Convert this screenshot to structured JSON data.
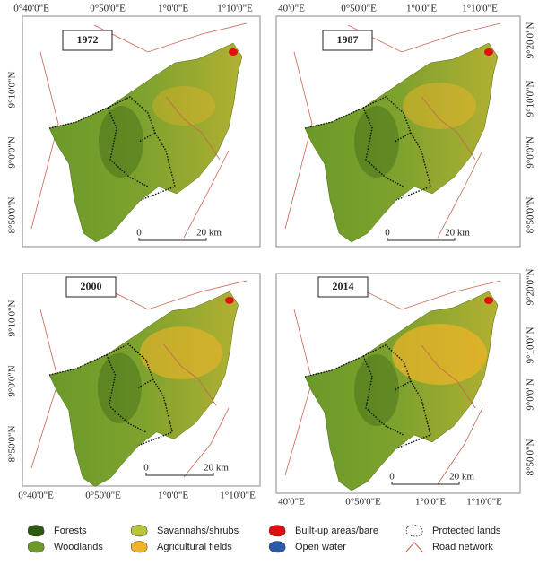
{
  "panels": [
    {
      "year": "1972",
      "lon_labels": [
        "0°40'0\"E",
        "0°50'0\"E",
        "1°0'0\"E",
        "1°10'0\"E"
      ],
      "lat_labels": [
        "9°10'0\"N",
        "9°0'0\"N",
        "8°50'0\"N"
      ],
      "scale_zero": "0",
      "scale_distance": "20 km"
    },
    {
      "year": "1987",
      "lon_labels": [
        "40'0\"E",
        "0°50'0\"E",
        "1°0'0\"E",
        "1°10'0\"E"
      ],
      "lat_labels": [
        "9°20'0\"N",
        "9°10'0\"N",
        "9°0'0\"N",
        "8°50'0\"N"
      ],
      "scale_zero": "0",
      "scale_distance": "20 km"
    },
    {
      "year": "2000",
      "lon_labels": [
        "0°40'0\"E",
        "0°50'0\"E",
        "1°0'0\"E",
        "1°10'0\"E"
      ],
      "lat_labels": [
        "9°10'0\"N",
        "9°0'0\"N",
        "8°50'0\"N"
      ],
      "scale_zero": "0",
      "scale_distance": "20 km"
    },
    {
      "year": "2014",
      "lon_labels": [
        "40'0\"E",
        "0°50'0\"E",
        "1°0'0\"E",
        "1°10'0\"E"
      ],
      "lat_labels": [
        "9°20'0\"N",
        "9°10'0\"N",
        "9°0'0\"N",
        "8°50'0\"N"
      ],
      "scale_zero": "0",
      "scale_distance": "20 km"
    }
  ],
  "legend": [
    {
      "label": "Forests",
      "color": "#2f5a12"
    },
    {
      "label": "Woodlands",
      "color": "#6e9a2c"
    },
    {
      "label": "Savannahs/shrubs",
      "color": "#b8c43a"
    },
    {
      "label": "Agricultural fields",
      "color": "#f0b428"
    },
    {
      "label": "Built-up areas/bare",
      "color": "#e01010"
    },
    {
      "label": "Open water",
      "color": "#2a5aa8"
    },
    {
      "label": "Protected lands",
      "color": "#ffffff"
    },
    {
      "label": "Road network",
      "color": "#c86450"
    }
  ]
}
